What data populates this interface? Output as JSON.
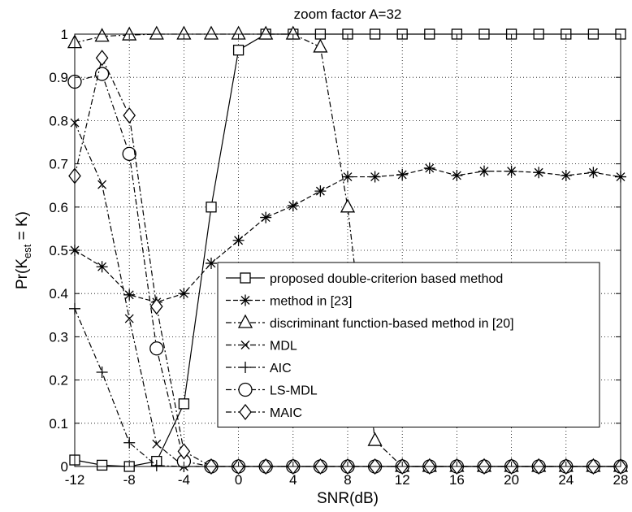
{
  "chart_data": {
    "type": "line",
    "title": "zoom factor A=32",
    "xlabel": "SNR(dB)",
    "ylabel_main": "Pr(K",
    "ylabel_sub": "est",
    "ylabel_tail": " = K)",
    "xlim": [
      -12,
      28
    ],
    "ylim": [
      0,
      1
    ],
    "xticks": [
      -12,
      -8,
      -4,
      0,
      4,
      8,
      12,
      16,
      20,
      24,
      28
    ],
    "yticks": [
      0,
      0.1,
      0.2,
      0.3,
      0.4,
      0.5,
      0.6,
      0.7,
      0.8,
      0.9,
      1
    ],
    "grid": true,
    "legend_position": "center-right",
    "x": [
      -12,
      -10,
      -8,
      -6,
      -4,
      -2,
      0,
      2,
      4,
      6,
      8,
      10,
      12,
      14,
      16,
      18,
      20,
      22,
      24,
      26,
      28
    ],
    "series": [
      {
        "name": "proposed double-criterion based method",
        "marker": "square",
        "dash": "",
        "values": [
          0.015,
          0.003,
          0.0,
          0.012,
          0.145,
          0.6,
          0.963,
          1,
          1,
          1,
          1,
          1,
          1,
          1,
          1,
          1,
          1,
          1,
          1,
          1,
          1
        ]
      },
      {
        "name": "method in [23]",
        "marker": "asterisk",
        "dash": "6,3",
        "values": [
          0.5,
          0.462,
          0.397,
          0.38,
          0.4,
          0.47,
          0.523,
          0.576,
          0.603,
          0.637,
          0.67,
          0.67,
          0.675,
          0.69,
          0.673,
          0.683,
          0.683,
          0.68,
          0.673,
          0.68,
          0.67
        ]
      },
      {
        "name": "discriminant function-based method in [20]",
        "marker": "triangle",
        "dash": "7,3,2,3",
        "values": [
          0.98,
          0.995,
          0.998,
          1,
          1,
          1,
          1,
          1,
          1,
          0.97,
          0.6,
          0.06,
          0,
          0,
          0,
          0,
          0,
          0,
          0,
          0,
          0
        ]
      },
      {
        "name": "MDL",
        "marker": "x",
        "dash": "7,3,2,3",
        "values": [
          0.795,
          0.652,
          0.342,
          0.052,
          0,
          0,
          0,
          0,
          0,
          0,
          0,
          0,
          0,
          0,
          0,
          0,
          0,
          0,
          0,
          0,
          0
        ]
      },
      {
        "name": "AIC",
        "marker": "plus",
        "dash": "7,3,2,3",
        "values": [
          0.365,
          0.218,
          0.055,
          0.002,
          0,
          0,
          0,
          0,
          0,
          0,
          0,
          0,
          0,
          0,
          0,
          0,
          0,
          0,
          0,
          0,
          0
        ]
      },
      {
        "name": "LS-MDL",
        "marker": "circle",
        "dash": "7,3,2,3",
        "values": [
          0.89,
          0.908,
          0.723,
          0.273,
          0.012,
          0,
          0,
          0,
          0,
          0,
          0,
          0,
          0,
          0,
          0,
          0,
          0,
          0,
          0,
          0,
          0
        ]
      },
      {
        "name": "MAIC",
        "marker": "diamond",
        "dash": "7,3,2,3",
        "values": [
          0.672,
          0.945,
          0.812,
          0.37,
          0.035,
          0,
          0,
          0,
          0,
          0,
          0,
          0,
          0,
          0,
          0,
          0,
          0,
          0,
          0,
          0,
          0
        ]
      }
    ]
  }
}
